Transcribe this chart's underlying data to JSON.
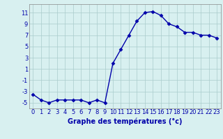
{
  "hours": [
    0,
    1,
    2,
    3,
    4,
    5,
    6,
    7,
    8,
    9,
    10,
    11,
    12,
    13,
    14,
    15,
    16,
    17,
    18,
    19,
    20,
    21,
    22,
    23
  ],
  "temps": [
    -3.5,
    -4.5,
    -5.0,
    -4.5,
    -4.5,
    -4.5,
    -4.5,
    -5.0,
    -4.5,
    -5.0,
    2.0,
    4.5,
    7.0,
    9.5,
    11.0,
    11.2,
    10.5,
    9.0,
    8.5,
    7.5,
    7.5,
    7.0,
    7.0,
    6.5
  ],
  "line_color": "#0000aa",
  "marker": "D",
  "marker_size": 2.5,
  "bg_color": "#d8f0f0",
  "grid_color": "#aacccc",
  "xlabel": "Graphe des températures (°c)",
  "xlabel_color": "#0000aa",
  "xlabel_fontsize": 7,
  "yticks": [
    -5,
    -3,
    -1,
    1,
    3,
    5,
    7,
    9,
    11
  ],
  "xticks": [
    0,
    1,
    2,
    3,
    4,
    5,
    6,
    7,
    8,
    9,
    10,
    11,
    12,
    13,
    14,
    15,
    16,
    17,
    18,
    19,
    20,
    21,
    22,
    23
  ],
  "ylim": [
    -6.0,
    12.5
  ],
  "xlim": [
    -0.5,
    23.5
  ],
  "tick_color": "#0000aa",
  "tick_fontsize": 6,
  "line_width": 1.0
}
